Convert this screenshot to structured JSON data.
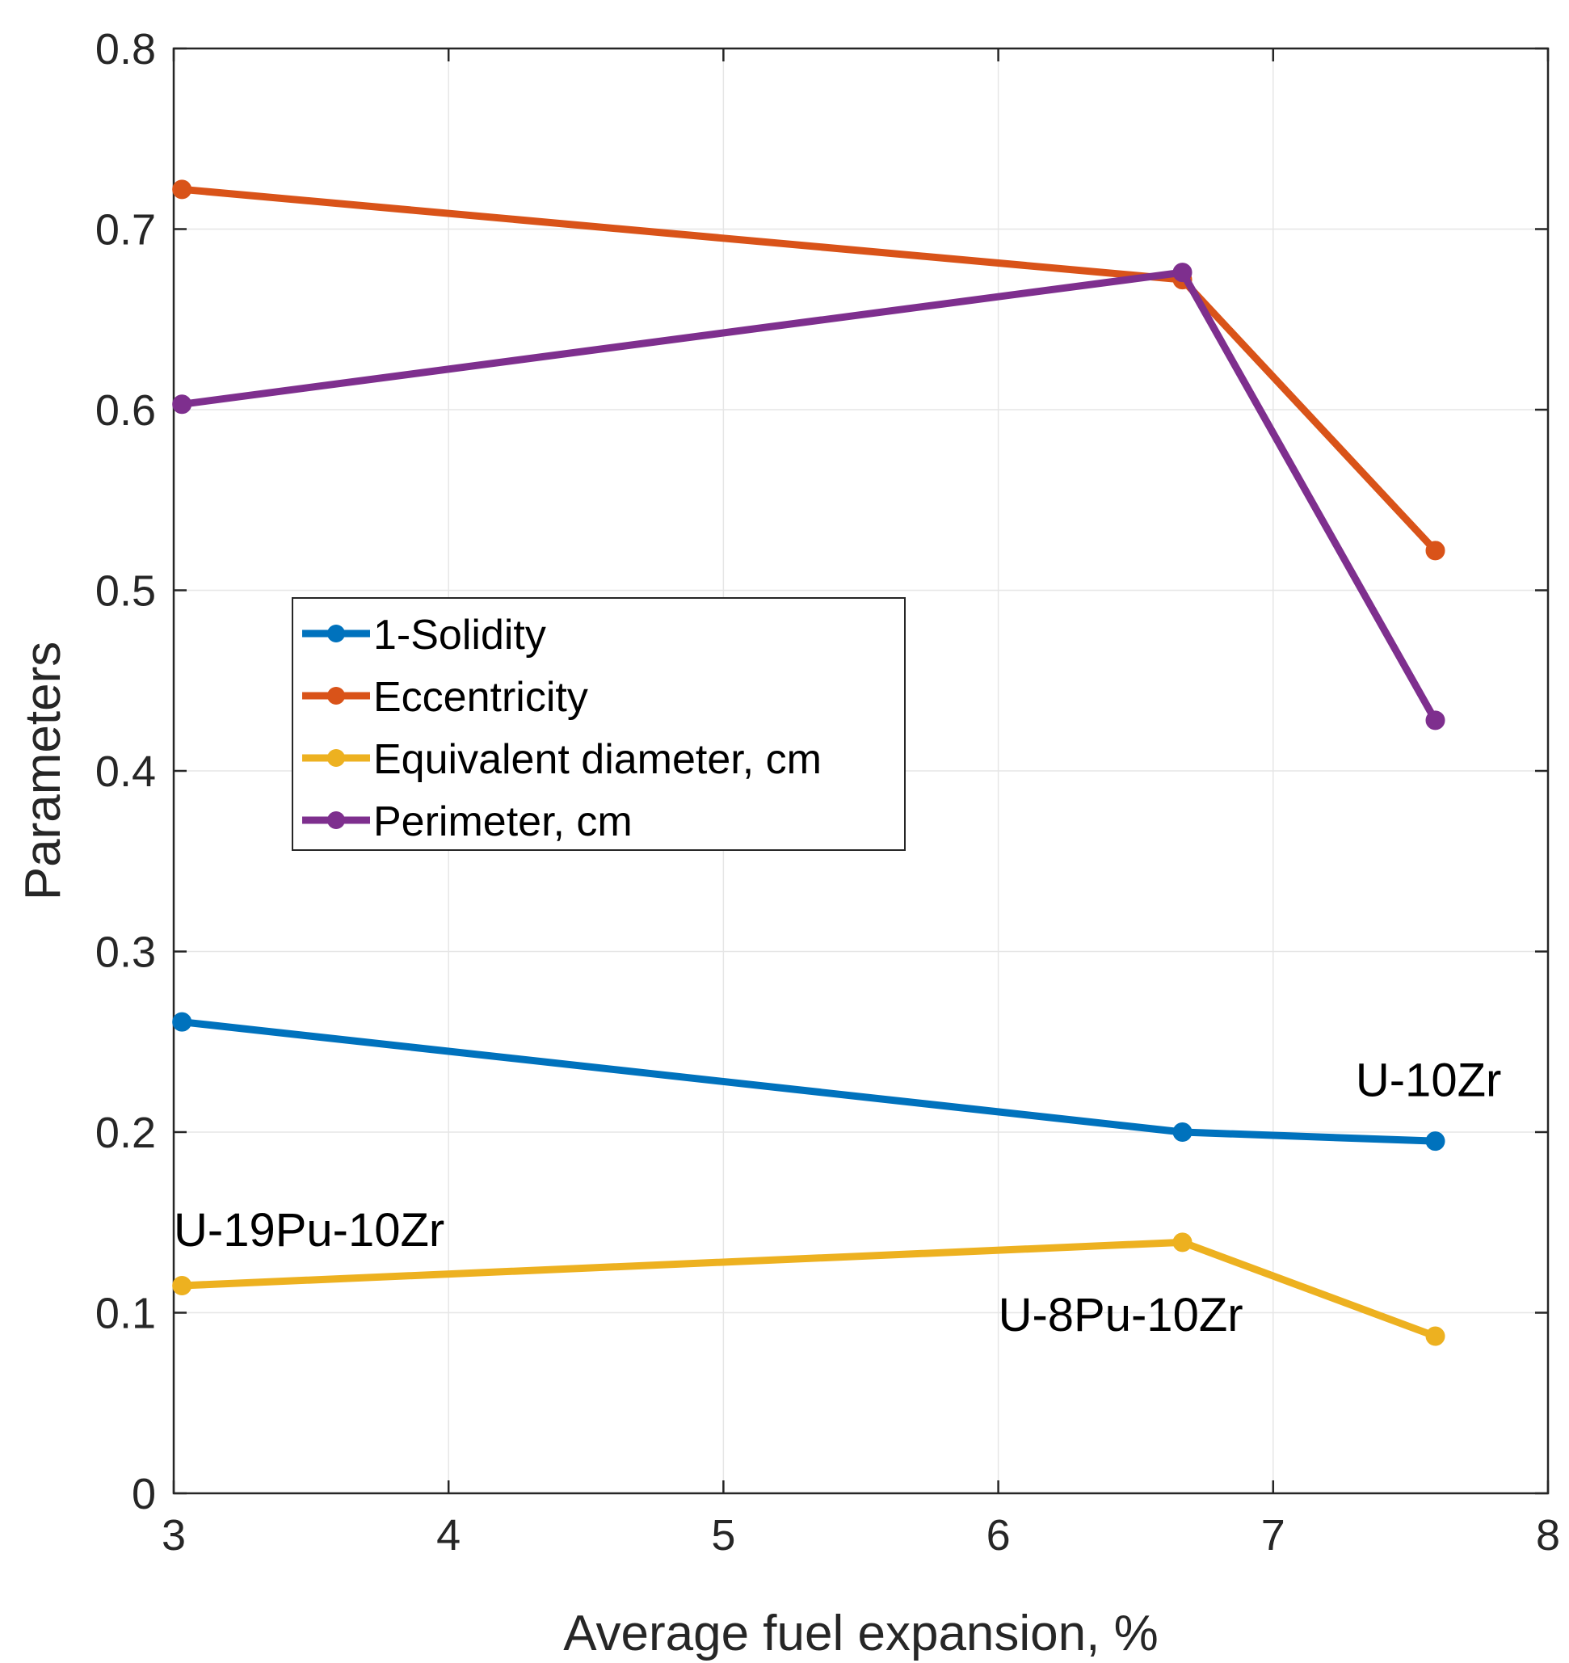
{
  "chart_data": {
    "type": "line",
    "title": "",
    "xlabel": "Average fuel expansion, %",
    "ylabel": "Parameters",
    "xlim": [
      3,
      8
    ],
    "ylim": [
      0,
      0.8
    ],
    "grid": true,
    "xticks": [
      "3",
      "4",
      "5",
      "6",
      "7",
      "8"
    ],
    "yticks": [
      "0",
      "0.1",
      "0.2",
      "0.3",
      "0.4",
      "0.5",
      "0.6",
      "0.7",
      "0.8"
    ],
    "x": [
      3.03,
      6.67,
      7.59
    ],
    "series": [
      {
        "name": "1-Solidity",
        "color": "#0072BD",
        "values": [
          0.261,
          0.2,
          0.195
        ]
      },
      {
        "name": "Eccentricity",
        "color": "#D95319",
        "values": [
          0.722,
          0.672,
          0.522
        ]
      },
      {
        "name": "Equivalent diameter, cm",
        "color": "#EDB120",
        "values": [
          0.115,
          0.139,
          0.087
        ]
      },
      {
        "name": "Perimeter, cm",
        "color": "#7E2F8E",
        "values": [
          0.603,
          0.676,
          0.428
        ]
      }
    ],
    "legend_position": "center-left",
    "annotations": [
      {
        "text": "U-10Zr",
        "x": 7.3,
        "y": 0.22
      },
      {
        "text": "U-19Pu-10Zr",
        "x": 3.0,
        "y": 0.137
      },
      {
        "text": "U-8Pu-10Zr",
        "x": 6.0,
        "y": 0.09
      }
    ]
  }
}
